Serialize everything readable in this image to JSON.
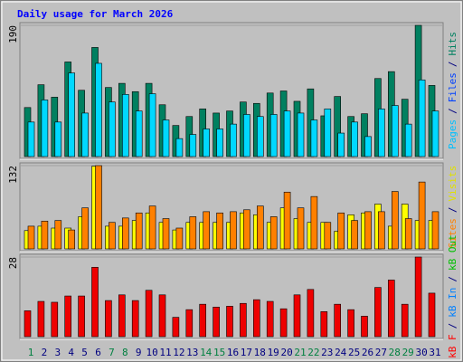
{
  "chart_data": {
    "type": "bar",
    "title": "Daily usage for March 2026",
    "categories": [
      "1",
      "2",
      "3",
      "4",
      "5",
      "6",
      "7",
      "8",
      "9",
      "10",
      "11",
      "12",
      "13",
      "14",
      "15",
      "16",
      "17",
      "18",
      "19",
      "20",
      "21",
      "22",
      "23",
      "24",
      "25",
      "26",
      "27",
      "28",
      "29",
      "30",
      "31"
    ],
    "category_colors": [
      "#008040",
      "#000080",
      "#000080",
      "#000080",
      "#000080",
      "#000080",
      "#008040",
      "#008040",
      "#000080",
      "#000080",
      "#000080",
      "#000080",
      "#000080",
      "#008040",
      "#008040",
      "#000080",
      "#000080",
      "#000080",
      "#000080",
      "#000080",
      "#008040",
      "#008040",
      "#000080",
      "#000080",
      "#000080",
      "#000080",
      "#000080",
      "#008040",
      "#008040",
      "#000080",
      "#000080"
    ],
    "panels": [
      {
        "ylim": [
          0,
          190
        ],
        "yticks": [
          190
        ],
        "axis_label_parts": [
          "Pages",
          "/",
          "Files",
          "/",
          "Hits"
        ],
        "axis_label_colors": [
          "#00c0ff",
          "#000080",
          "#0040ff",
          "#000080",
          "#008060"
        ],
        "series": [
          {
            "name": "Hits",
            "color": "#008060",
            "values": [
              71,
              104,
              86,
              137,
              96,
              158,
              100,
              106,
              94,
              106,
              75,
              45,
              58,
              69,
              63,
              66,
              79,
              77,
              92,
              95,
              80,
              98,
              59,
              87,
              58,
              62,
              113,
              123,
              83,
              190,
              103
            ]
          },
          {
            "name": "Pages",
            "color": "#00d8ff",
            "values": [
              50,
              82,
              50,
              121,
              63,
              135,
              79,
              90,
              66,
              91,
              53,
              26,
              32,
              40,
              40,
              47,
              61,
              58,
              61,
              66,
              63,
              53,
              69,
              34,
              50,
              29,
              69,
              74,
              47,
              111,
              66
            ]
          }
        ]
      },
      {
        "ylim": [
          0,
          132
        ],
        "yticks": [
          132
        ],
        "axis_label_parts": [
          "Sites",
          "/",
          "Visits"
        ],
        "axis_label_colors": [
          "#ff8000",
          "#000080",
          "#e0e000"
        ],
        "series": [
          {
            "name": "Visits",
            "color": "#ffff00",
            "values": [
              29,
              36,
              33,
              33,
              51,
              131,
              36,
              36,
              45,
              57,
              42,
              30,
              42,
              42,
              42,
              42,
              57,
              54,
              42,
              65,
              48,
              42,
              42,
              28,
              54,
              57,
              71,
              36,
              71,
              45,
              45
            ]
          },
          {
            "name": "Sites",
            "color": "#ff8000",
            "values": [
              36,
              44,
              45,
              30,
              65,
              132,
              42,
              49,
              57,
              68,
              48,
              33,
              51,
              59,
              57,
              59,
              62,
              68,
              51,
              90,
              65,
              83,
              42,
              57,
              45,
              59,
              59,
              91,
              48,
              106,
              59
            ]
          }
        ]
      },
      {
        "ylim": [
          0,
          28
        ],
        "yticks": [
          28
        ],
        "axis_label_parts": [
          "kB F",
          "/",
          "kB In",
          "/",
          "kB Out"
        ],
        "axis_label_colors": [
          "#ff0000",
          "#000080",
          "#0080ff",
          "#000080",
          "#00c000"
        ],
        "series": [
          {
            "name": "kB F",
            "color": "#ee0000",
            "values": [
              9.1,
              12.4,
              12.1,
              14.3,
              14.3,
              24.4,
              12.7,
              14.7,
              12.7,
              16.3,
              14.7,
              6.8,
              9.5,
              11.4,
              10.4,
              10.7,
              11.7,
              13,
              12.4,
              9.8,
              14.7,
              16.6,
              8.8,
              11.4,
              9.5,
              7.2,
              17.3,
              19.9,
              11.4,
              28,
              15.3
            ]
          }
        ]
      }
    ]
  }
}
